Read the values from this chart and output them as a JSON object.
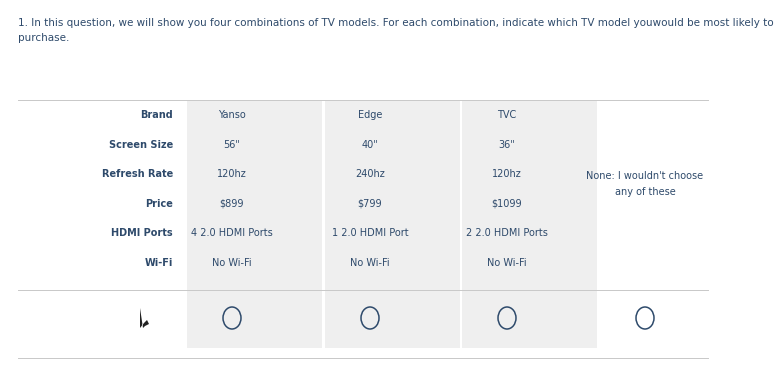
{
  "question_text": "1. In this question, we will show you four combinations of TV models. For each combination, indicate which TV model youwould be most likely to\npurchase.",
  "text_color": "#2e4a6b",
  "bg_color": "#ffffff",
  "col_bg": "#efefef",
  "row_labels": [
    "Brand",
    "Screen Size",
    "Refresh Rate",
    "Price",
    "HDMI Ports",
    "Wi-Fi"
  ],
  "col1_values": [
    "Yanso",
    "56\"",
    "120hz",
    "$899",
    "4 2.0 HDMI Ports",
    "No Wi-Fi"
  ],
  "col2_values": [
    "Edge",
    "40\"",
    "240hz",
    "$799",
    "1 2.0 HDMI Port",
    "No Wi-Fi"
  ],
  "col3_values": [
    "TVC",
    "36\"",
    "120hz",
    "$1099",
    "2 2.0 HDMI Ports",
    "No Wi-Fi"
  ],
  "none_text": "None: I wouldn't choose\nany of these",
  "label_fontsize": 7.0,
  "value_fontsize": 7.0,
  "question_fontsize": 7.5
}
